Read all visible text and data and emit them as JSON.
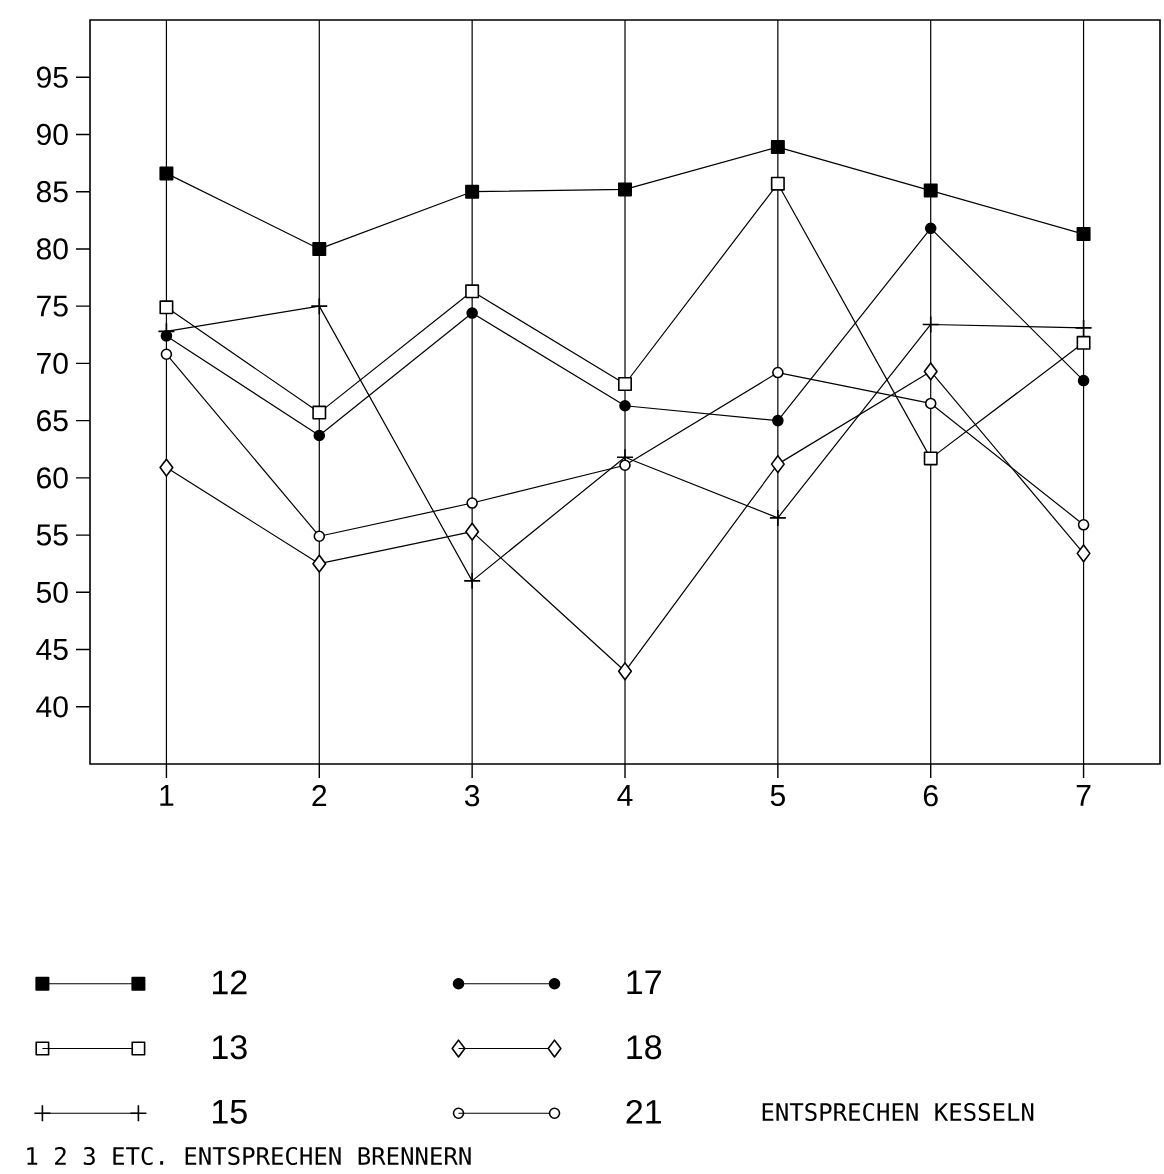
{
  "chart_data": {
    "type": "line",
    "x": [
      1,
      2,
      3,
      4,
      5,
      6,
      7
    ],
    "xlim": [
      0.5,
      7.5
    ],
    "xticks": [
      1,
      2,
      3,
      4,
      5,
      6,
      7
    ],
    "ylim": [
      35,
      100
    ],
    "yticks": [
      40,
      45,
      50,
      55,
      60,
      65,
      70,
      75,
      80,
      85,
      90,
      95
    ],
    "grid": "x",
    "legend": "bottom",
    "line_style": "solid",
    "series": [
      {
        "name": "12",
        "color": "#000000",
        "marker": "square",
        "values": [
          86.6,
          80,
          85,
          85.2,
          88.9,
          85.1,
          81.3
        ]
      },
      {
        "name": "13",
        "color": "#000000",
        "colors": [
          "#ffffff",
          "#ffffff",
          "#ffffff",
          "#ffffff",
          "#ffffff",
          "#ffffff",
          "#ffffff"
        ],
        "marker": "square",
        "values": [
          74.9,
          65.7,
          76.3,
          68.2,
          85.7,
          61.7,
          71.8
        ]
      },
      {
        "name": "15",
        "color": "#000000",
        "marker": "cross",
        "values": [
          72.8,
          75,
          51,
          61.8,
          56.5,
          73.4,
          73.1
        ]
      },
      {
        "name": "17",
        "color": "#000000",
        "marker": "circle",
        "values": [
          72.4,
          63.7,
          74.4,
          66.3,
          65,
          81.8,
          68.5
        ]
      },
      {
        "name": "18",
        "color": "#000000",
        "colors": [
          "#ffffff",
          "#ffffff",
          "#ffffff",
          "#ffffff",
          "#ffffff",
          "#ffffff",
          "#ffffff"
        ],
        "marker": "diamond",
        "values": [
          60.9,
          52.5,
          55.3,
          43.1,
          61.2,
          69.3,
          53.4
        ]
      },
      {
        "name": "21",
        "color": "#000000",
        "colors": [
          "#ffffff",
          "#ffffff",
          "#ffffff",
          "#ffffff",
          "#ffffff",
          "#ffffff",
          "#ffffff"
        ],
        "marker": "circle",
        "values": [
          70.8,
          54.9,
          57.8,
          61.1,
          69.2,
          66.5,
          55.9
        ]
      }
    ],
    "annotations": [
      "ENTSPRECHEN KESSELN",
      "1 2 3 ETC. ENTSPRECHEN BRENNERN"
    ]
  }
}
